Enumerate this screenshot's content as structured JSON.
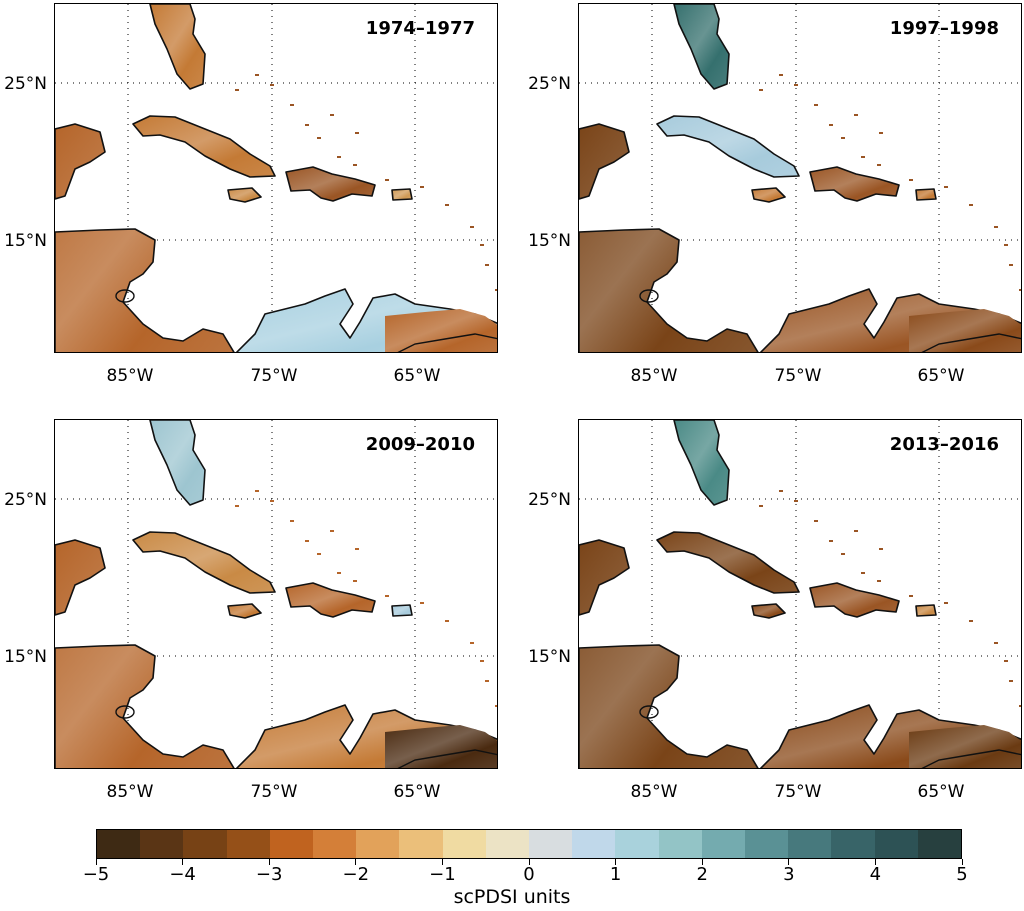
{
  "panels": [
    {
      "title": "1974–1977",
      "tone": "dry",
      "florida": "#c47a35",
      "central_america": "#b5652a",
      "cuba": "#c47a35",
      "hispaniola": "#9a5524",
      "jamaica": "#c98a45",
      "puerto_rico": "#d09a55",
      "south_america": "#a8d0e0",
      "south_america_east": "#b5652a"
    },
    {
      "title": "1997–1998",
      "tone": "mixed",
      "florida": "#35706e",
      "central_america": "#7a4418",
      "cuba": "#a7cbdc",
      "hispaniola": "#9a5524",
      "jamaica": "#c47a35",
      "puerto_rico": "#c47a35",
      "south_america": "#9a5524",
      "south_america_east": "#8a4a1a"
    },
    {
      "title": "2009–2010",
      "tone": "mixed",
      "florida": "#9dc5d0",
      "central_america": "#b5652a",
      "cuba": "#c98a45",
      "hispaniola": "#b5652a",
      "jamaica": "#c47a35",
      "puerto_rico": "#a7cbdc",
      "south_america": "#c47a35",
      "south_america_east": "#4a2a10"
    },
    {
      "title": "2013–2016",
      "tone": "dry",
      "florida": "#4a8a86",
      "central_america": "#7a4418",
      "cuba": "#7a4418",
      "hispaniola": "#9a5524",
      "jamaica": "#8a4a1a",
      "puerto_rico": "#c98a45",
      "south_america": "#8a4a1a",
      "south_america_east": "#6a3a12"
    }
  ],
  "lat_labels": [
    "25°N",
    "15°N"
  ],
  "lon_labels": [
    "85°W",
    "75°W",
    "65°W"
  ],
  "colorbar": {
    "label": "scPDSI units",
    "ticks": [
      "−5",
      "−4",
      "−3",
      "−2",
      "−1",
      "0",
      "1",
      "2",
      "3",
      "4",
      "5"
    ],
    "colors": [
      "#3e2a14",
      "#5a3515",
      "#774215",
      "#955018",
      "#c0631f",
      "#d47f38",
      "#e2a25a",
      "#ebbf7a",
      "#f0dba2",
      "#ece3c5",
      "#d8dde0",
      "#c0d8ea",
      "#a9d2dc",
      "#93c4c6",
      "#74abaf",
      "#5a9195",
      "#47797d",
      "#386468",
      "#2d5255",
      "#27403f"
    ]
  }
}
